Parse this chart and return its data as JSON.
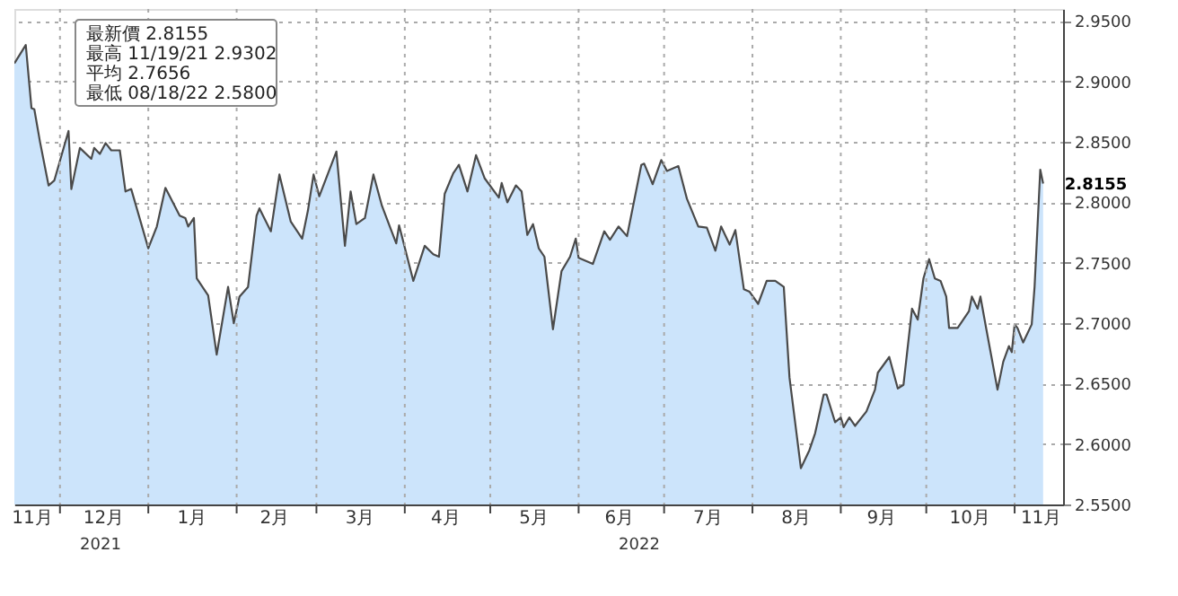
{
  "chart_data": {
    "type": "area",
    "xlim": [
      "2021-11-15",
      "2022-11-18"
    ],
    "ylim": [
      2.55,
      2.96
    ],
    "yticks": [
      {
        "value": 2.55,
        "label": "2.5500"
      },
      {
        "value": 2.6,
        "label": "2.6000"
      },
      {
        "value": 2.65,
        "label": "2.6500"
      },
      {
        "value": 2.7,
        "label": "2.7000"
      },
      {
        "value": 2.75,
        "label": "2.7500"
      },
      {
        "value": 2.8,
        "label": "2.8000"
      },
      {
        "value": 2.85,
        "label": "2.8500"
      },
      {
        "value": 2.9,
        "label": "2.9000"
      },
      {
        "value": 2.95,
        "label": "2.9500"
      }
    ],
    "xticks": [
      {
        "value": "2021-11-21",
        "label": "11月"
      },
      {
        "value": "2021-12-01",
        "label": null
      },
      {
        "value": "2021-12-16",
        "label": "12月"
      },
      {
        "value": "2022-01-01",
        "label": null
      },
      {
        "value": "2022-01-16",
        "label": "1月"
      },
      {
        "value": "2022-02-01",
        "label": null
      },
      {
        "value": "2022-02-14",
        "label": "2月"
      },
      {
        "value": "2022-03-01",
        "label": null
      },
      {
        "value": "2022-03-16",
        "label": "3月"
      },
      {
        "value": "2022-04-01",
        "label": null
      },
      {
        "value": "2022-04-15",
        "label": "4月"
      },
      {
        "value": "2022-05-01",
        "label": null
      },
      {
        "value": "2022-05-16",
        "label": "5月"
      },
      {
        "value": "2022-06-01",
        "label": null
      },
      {
        "value": "2022-06-15",
        "label": "6月"
      },
      {
        "value": "2022-07-01",
        "label": null
      },
      {
        "value": "2022-07-16",
        "label": "7月"
      },
      {
        "value": "2022-08-01",
        "label": null
      },
      {
        "value": "2022-08-16",
        "label": "8月"
      },
      {
        "value": "2022-09-01",
        "label": null
      },
      {
        "value": "2022-09-15",
        "label": "9月"
      },
      {
        "value": "2022-10-01",
        "label": null
      },
      {
        "value": "2022-10-16",
        "label": "10月"
      },
      {
        "value": "2022-11-01",
        "label": null
      },
      {
        "value": "2022-11-10",
        "label": "11月"
      }
    ],
    "grid": true,
    "annotations": [
      "最新價 2.8155",
      "最高 11/19/21 2.9302",
      "平均 2.7656",
      "最低 08/18/22 2.5800",
      "2021",
      "2022",
      {
        "text": "2.8155",
        "x": "2022-11-11",
        "y": 2.8155
      }
    ],
    "series": [
      {
        "color": "#cce4fb",
        "x": [
          "2021-11-15",
          "2021-11-19",
          "2021-11-21",
          "2021-11-22",
          "2021-11-24",
          "2021-11-27",
          "2021-11-29",
          "2021-12-04",
          "2021-12-05",
          "2021-12-08",
          "2021-12-12",
          "2021-12-13",
          "2021-12-15",
          "2021-12-17",
          "2021-12-19",
          "2021-12-22",
          "2021-12-24",
          "2021-12-26",
          "2022-01-01",
          "2022-01-04",
          "2022-01-07",
          "2022-01-12",
          "2022-01-14",
          "2022-01-15",
          "2022-01-17",
          "2022-01-18",
          "2022-01-22",
          "2022-01-25",
          "2022-01-29",
          "2022-01-31",
          "2022-02-02",
          "2022-02-05",
          "2022-02-08",
          "2022-02-09",
          "2022-02-13",
          "2022-02-16",
          "2022-02-20",
          "2022-02-24",
          "2022-02-26",
          "2022-02-28",
          "2022-03-02",
          "2022-03-08",
          "2022-03-11",
          "2022-03-13",
          "2022-03-15",
          "2022-03-18",
          "2022-03-21",
          "2022-03-24",
          "2022-03-29",
          "2022-03-30",
          "2022-04-04",
          "2022-04-08",
          "2022-04-11",
          "2022-04-13",
          "2022-04-15",
          "2022-04-18",
          "2022-04-20",
          "2022-04-23",
          "2022-04-26",
          "2022-04-29",
          "2022-05-04",
          "2022-05-05",
          "2022-05-07",
          "2022-05-10",
          "2022-05-12",
          "2022-05-14",
          "2022-05-16",
          "2022-05-18",
          "2022-05-20",
          "2022-05-23",
          "2022-05-26",
          "2022-05-29",
          "2022-05-31",
          "2022-06-01",
          "2022-06-06",
          "2022-06-10",
          "2022-06-12",
          "2022-06-15",
          "2022-06-18",
          "2022-06-23",
          "2022-06-24",
          "2022-06-27",
          "2022-06-30",
          "2022-07-02",
          "2022-07-06",
          "2022-07-09",
          "2022-07-13",
          "2022-07-16",
          "2022-07-19",
          "2022-07-21",
          "2022-07-24",
          "2022-07-26",
          "2022-07-29",
          "2022-07-31",
          "2022-08-03",
          "2022-08-06",
          "2022-08-09",
          "2022-08-12",
          "2022-08-14",
          "2022-08-18",
          "2022-08-21",
          "2022-08-23",
          "2022-08-26",
          "2022-08-27",
          "2022-08-30",
          "2022-09-01",
          "2022-09-02",
          "2022-09-04",
          "2022-09-06",
          "2022-09-10",
          "2022-09-13",
          "2022-09-14",
          "2022-09-18",
          "2022-09-21",
          "2022-09-23",
          "2022-09-26",
          "2022-09-28",
          "2022-09-30",
          "2022-10-02",
          "2022-10-04",
          "2022-10-06",
          "2022-10-08",
          "2022-10-09",
          "2022-10-12",
          "2022-10-16",
          "2022-10-17",
          "2022-10-19",
          "2022-10-20",
          "2022-10-22",
          "2022-10-26",
          "2022-10-28",
          "2022-10-30",
          "2022-10-31",
          "2022-11-01",
          "2022-11-02",
          "2022-11-04",
          "2022-11-07",
          "2022-11-08",
          "2022-11-10",
          "2022-11-11"
        ],
        "values": [
          2.915,
          2.9302,
          2.878,
          2.877,
          2.85,
          2.814,
          2.818,
          2.859,
          2.811,
          2.845,
          2.836,
          2.845,
          2.84,
          2.849,
          2.843,
          2.843,
          2.809,
          2.811,
          2.762,
          2.78,
          2.812,
          2.789,
          2.787,
          2.78,
          2.787,
          2.737,
          2.723,
          2.674,
          2.73,
          2.7,
          2.722,
          2.73,
          2.789,
          2.795,
          2.776,
          2.823,
          2.784,
          2.77,
          2.793,
          2.823,
          2.805,
          2.842,
          2.764,
          2.809,
          2.782,
          2.787,
          2.823,
          2.797,
          2.766,
          2.781,
          2.735,
          2.764,
          2.757,
          2.755,
          2.807,
          2.824,
          2.831,
          2.809,
          2.839,
          2.82,
          2.804,
          2.816,
          2.8,
          2.814,
          2.809,
          2.773,
          2.782,
          2.762,
          2.755,
          2.695,
          2.743,
          2.755,
          2.77,
          2.754,
          2.749,
          2.776,
          2.769,
          2.78,
          2.772,
          2.831,
          2.832,
          2.815,
          2.835,
          2.826,
          2.83,
          2.803,
          2.78,
          2.779,
          2.76,
          2.78,
          2.765,
          2.777,
          2.728,
          2.726,
          2.716,
          2.735,
          2.735,
          2.73,
          2.655,
          2.58,
          2.595,
          2.609,
          2.641,
          2.641,
          2.618,
          2.622,
          2.614,
          2.622,
          2.615,
          2.627,
          2.645,
          2.659,
          2.672,
          2.646,
          2.649,
          2.712,
          2.703,
          2.737,
          2.753,
          2.737,
          2.735,
          2.722,
          2.696,
          2.696,
          2.71,
          2.722,
          2.712,
          2.722,
          2.696,
          2.645,
          2.668,
          2.681,
          2.676,
          2.699,
          2.696,
          2.684,
          2.699,
          2.73,
          2.827,
          2.8155
        ]
      }
    ]
  }
}
